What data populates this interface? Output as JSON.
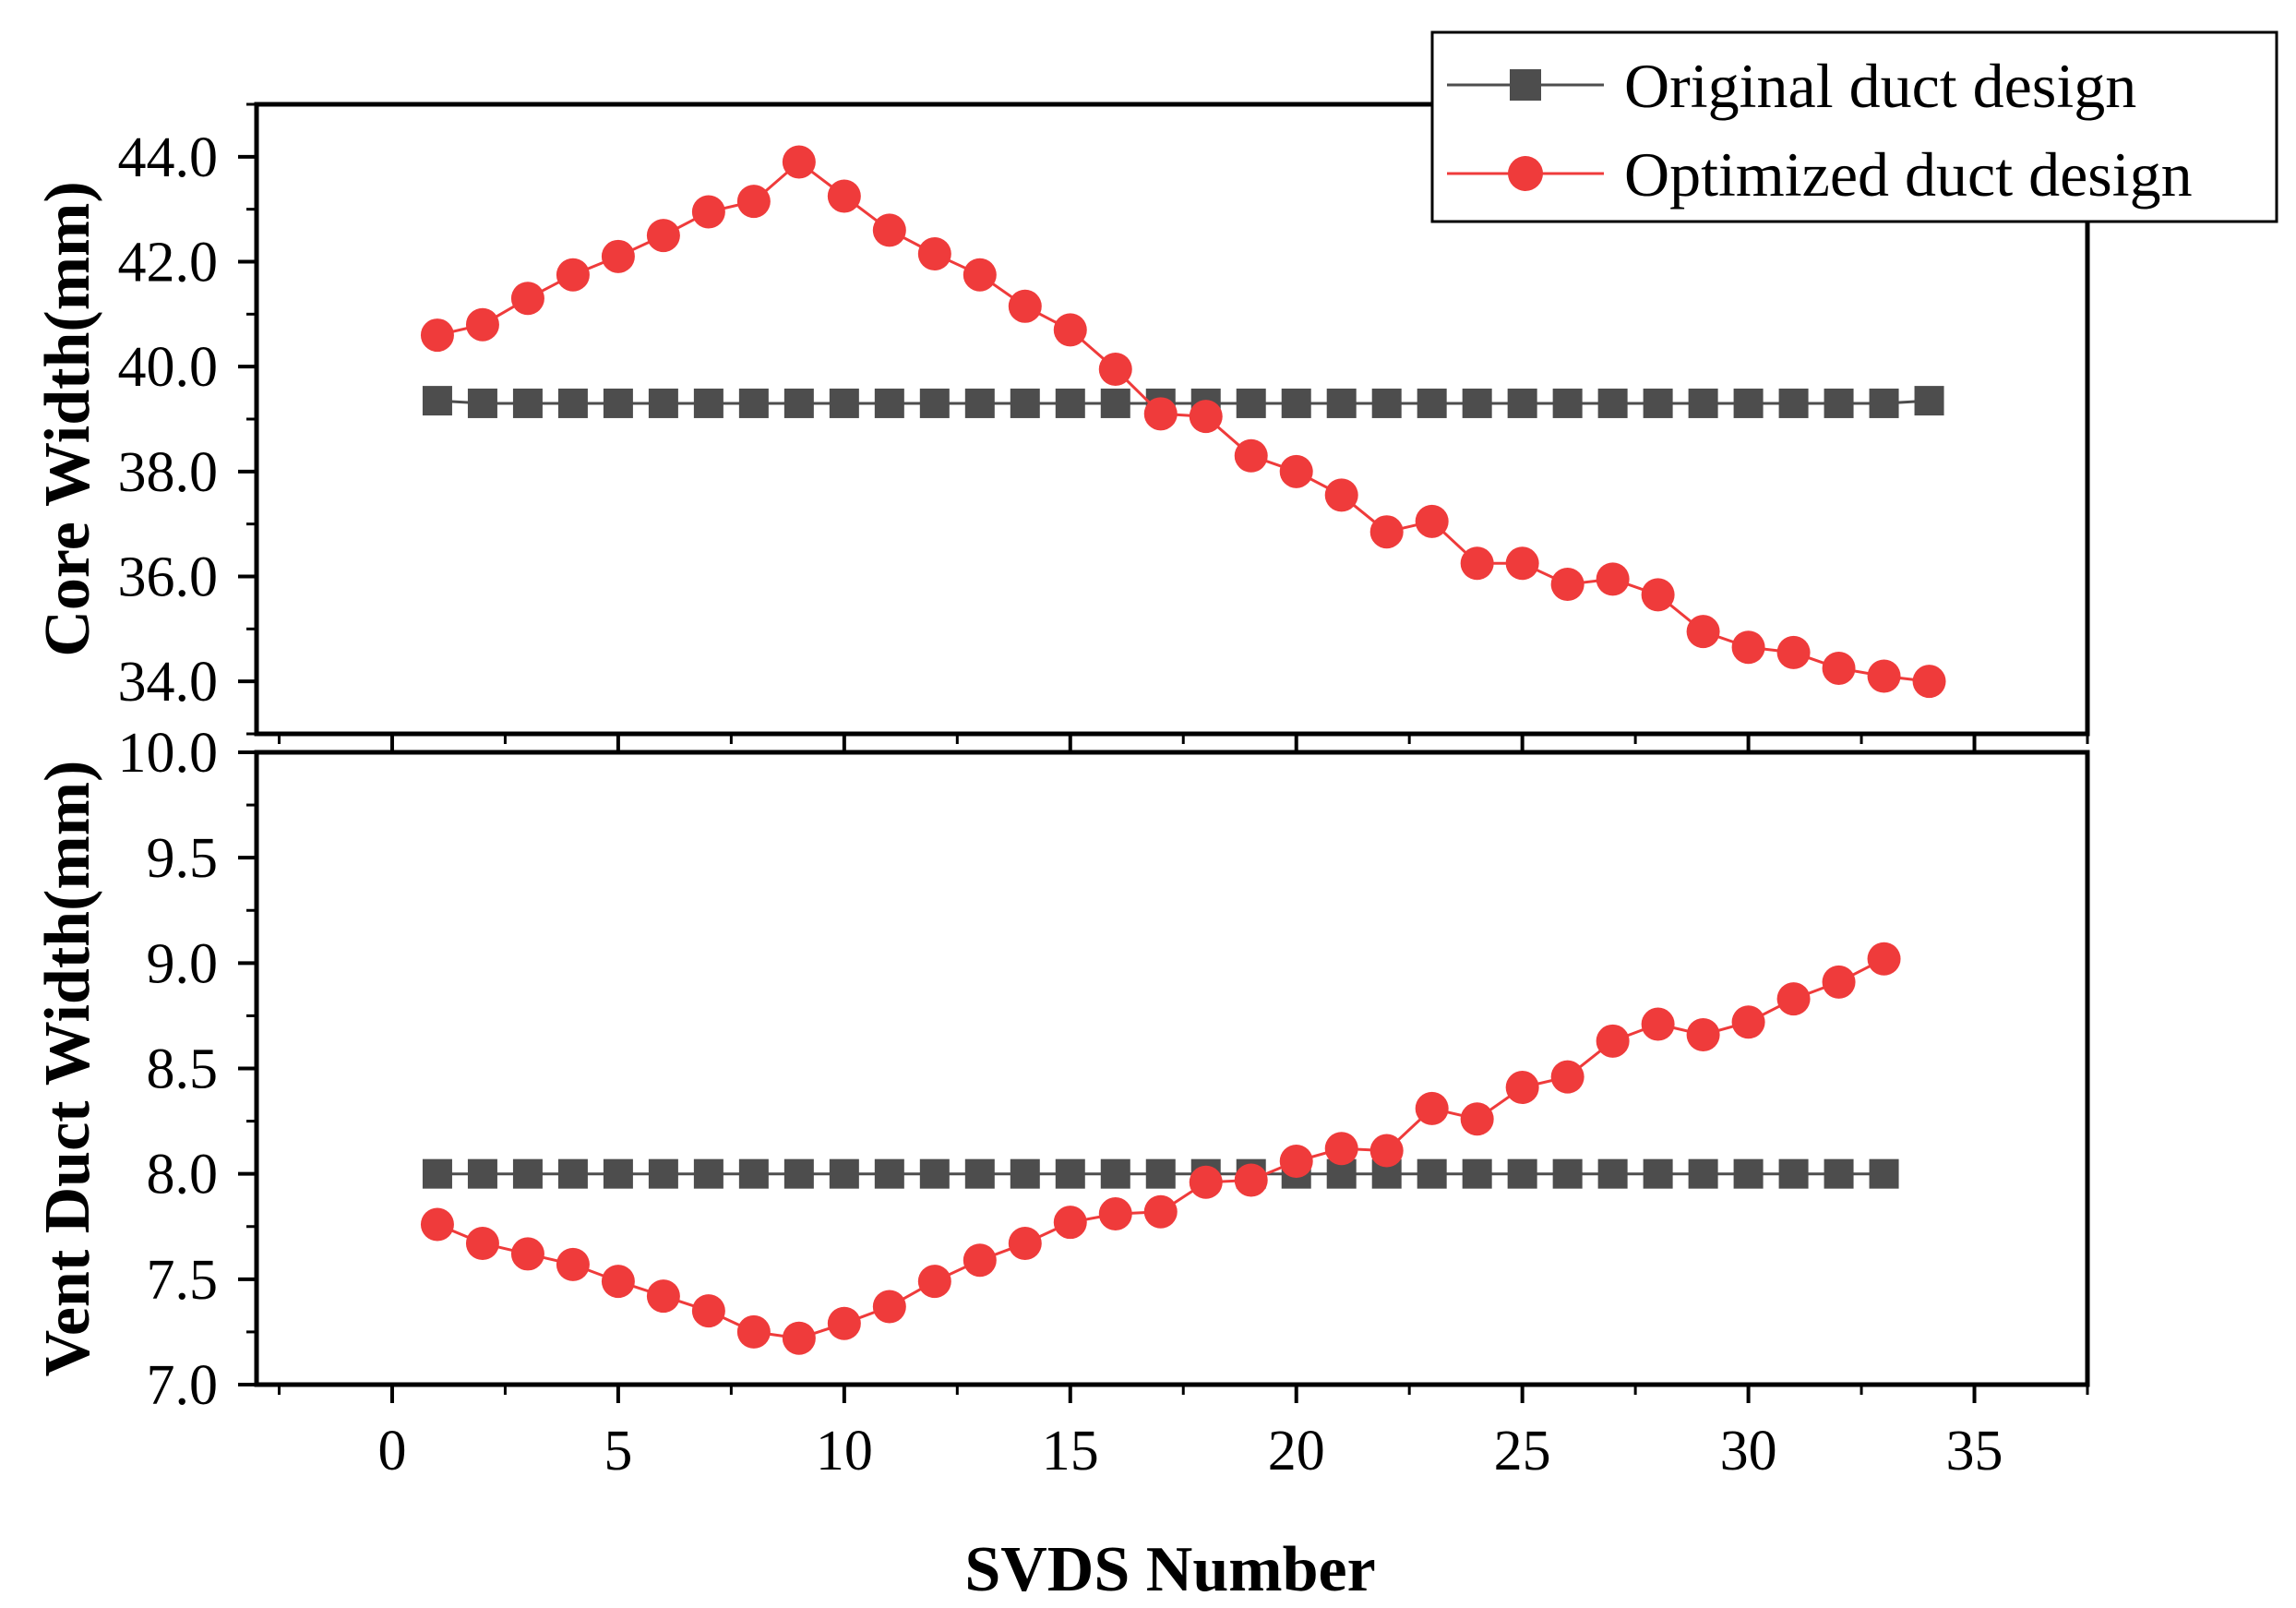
{
  "chart_data": [
    {
      "type": "line",
      "panel": "top",
      "title": "",
      "xlabel": "SVDS Number",
      "ylabel": "Core Width(mm)",
      "xlim": [
        -3,
        37.5
      ],
      "ylim": [
        33.0,
        45.0
      ],
      "yticks": [
        "34.0",
        "36.0",
        "38.0",
        "40.0",
        "42.0",
        "44.0"
      ],
      "series": [
        {
          "name": "Original duct design",
          "color": "#4d4d4d",
          "marker": "square",
          "x": [
            1,
            2,
            3,
            4,
            5,
            6,
            7,
            8,
            9,
            10,
            11,
            12,
            13,
            14,
            15,
            16,
            17,
            18,
            19,
            20,
            21,
            22,
            23,
            24,
            25,
            26,
            27,
            28,
            29,
            30,
            31,
            32,
            33,
            34
          ],
          "values": [
            39.35,
            39.3,
            39.3,
            39.3,
            39.3,
            39.3,
            39.3,
            39.3,
            39.3,
            39.3,
            39.3,
            39.3,
            39.3,
            39.3,
            39.3,
            39.3,
            39.3,
            39.3,
            39.3,
            39.3,
            39.3,
            39.3,
            39.3,
            39.3,
            39.3,
            39.3,
            39.3,
            39.3,
            39.3,
            39.3,
            39.3,
            39.3,
            39.3,
            39.35
          ]
        },
        {
          "name": "Optimized duct design",
          "color": "#ef3b3b",
          "marker": "circle",
          "x": [
            1,
            2,
            3,
            4,
            5,
            6,
            7,
            8,
            9,
            10,
            11,
            12,
            13,
            14,
            15,
            16,
            17,
            18,
            19,
            20,
            21,
            22,
            23,
            24,
            25,
            26,
            27,
            28,
            29,
            30,
            31,
            32,
            33,
            34
          ],
          "values": [
            40.6,
            40.8,
            41.3,
            41.75,
            42.1,
            42.5,
            42.95,
            43.15,
            43.9,
            43.25,
            42.6,
            42.15,
            41.75,
            41.15,
            40.7,
            39.95,
            39.1,
            39.05,
            38.3,
            38.0,
            37.55,
            36.85,
            37.05,
            36.25,
            36.25,
            35.85,
            35.95,
            35.65,
            34.95,
            34.65,
            34.55,
            34.25,
            34.1,
            34.0
          ]
        }
      ]
    },
    {
      "type": "line",
      "panel": "bottom",
      "title": "",
      "xlabel": "SVDS Number",
      "ylabel": "Vent Duct Width(mm)",
      "xlim": [
        -3,
        37.5
      ],
      "ylim": [
        7.0,
        10.0
      ],
      "xticks": [
        "0",
        "5",
        "10",
        "15",
        "20",
        "25",
        "30",
        "35"
      ],
      "yticks": [
        "7.0",
        "7.5",
        "8.0",
        "8.5",
        "9.0",
        "9.5",
        "10.0"
      ],
      "series": [
        {
          "name": "Original duct design",
          "color": "#4d4d4d",
          "marker": "square",
          "x": [
            1,
            2,
            3,
            4,
            5,
            6,
            7,
            8,
            9,
            10,
            11,
            12,
            13,
            14,
            15,
            16,
            17,
            18,
            19,
            20,
            21,
            22,
            23,
            24,
            25,
            26,
            27,
            28,
            29,
            30,
            31,
            32,
            33
          ],
          "values": [
            8,
            8,
            8,
            8,
            8,
            8,
            8,
            8,
            8,
            8,
            8,
            8,
            8,
            8,
            8,
            8,
            8,
            8,
            8,
            8,
            8,
            8,
            8,
            8,
            8,
            8,
            8,
            8,
            8,
            8,
            8,
            8,
            8
          ]
        },
        {
          "name": "Optimized duct design",
          "color": "#ef3b3b",
          "marker": "circle",
          "x": [
            1,
            2,
            3,
            4,
            5,
            6,
            7,
            8,
            9,
            10,
            11,
            12,
            13,
            14,
            15,
            16,
            17,
            18,
            19,
            20,
            21,
            22,
            23,
            24,
            25,
            26,
            27,
            28,
            29,
            30,
            31,
            32,
            33
          ],
          "values": [
            7.76,
            7.67,
            7.62,
            7.57,
            7.49,
            7.42,
            7.35,
            7.25,
            7.22,
            7.29,
            7.37,
            7.49,
            7.59,
            7.67,
            7.77,
            7.81,
            7.82,
            7.96,
            7.97,
            8.06,
            8.12,
            8.11,
            8.31,
            8.26,
            8.41,
            8.46,
            8.63,
            8.71,
            8.66,
            8.72,
            8.83,
            8.91,
            9.02
          ]
        }
      ]
    }
  ],
  "legend": {
    "placement": "top-right",
    "items": [
      {
        "label": "Original duct design",
        "color": "#4d4d4d",
        "marker": "square"
      },
      {
        "label": "Optimized duct design",
        "color": "#ef3b3b",
        "marker": "circle"
      }
    ]
  }
}
